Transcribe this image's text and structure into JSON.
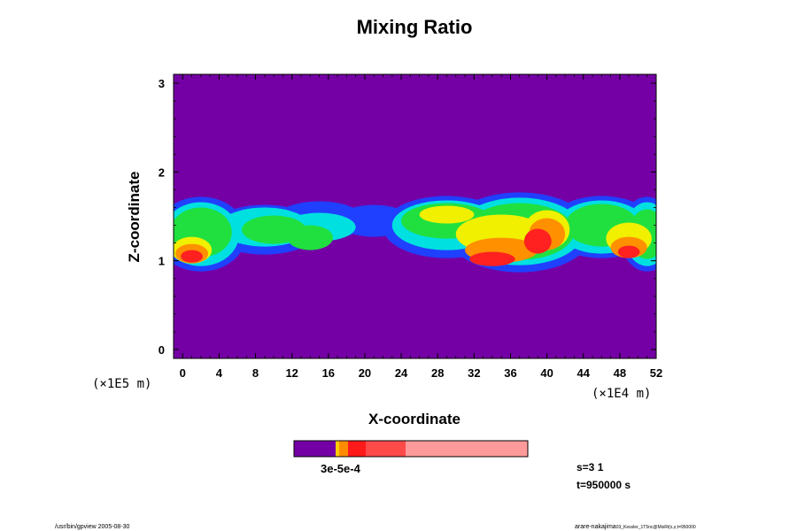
{
  "chart_data": {
    "type": "heatmap",
    "title": "Mixing Ratio",
    "xlabel": "X-coordinate",
    "ylabel": "Z-coordinate",
    "x_units": "(×1E4 m)",
    "y_units": "(×1E5 m)",
    "xlim": [
      -1,
      52
    ],
    "ylim": [
      -0.1,
      3.1
    ],
    "x_ticks": [
      "0",
      "4",
      "8",
      "12",
      "16",
      "20",
      "24",
      "28",
      "32",
      "36",
      "40",
      "44",
      "48",
      "52"
    ],
    "y_ticks": [
      "0",
      "1",
      "2",
      "3"
    ],
    "x_tick_values": [
      0,
      4,
      8,
      12,
      16,
      20,
      24,
      28,
      32,
      36,
      40,
      44,
      48,
      52
    ],
    "y_tick_values": [
      0,
      1,
      2,
      3
    ],
    "background_color": "#7400a5",
    "band_center_z": 1.4,
    "colorbar": {
      "label": "3e-5e-4",
      "colors": [
        "#7400a5",
        "#ffcc00",
        "#ff8c00",
        "#ff1a1a",
        "#ff4a4a",
        "#ff9a9a"
      ]
    }
  },
  "info": {
    "step": "s=3 1",
    "time": "t=950000 s"
  },
  "footer": {
    "left": "/usr/bin/gpview 2005-08-30",
    "right": "arare-nakajima",
    "right_small": "03_Kessler_1T5nc@MixRt(x,z,t=950000"
  }
}
